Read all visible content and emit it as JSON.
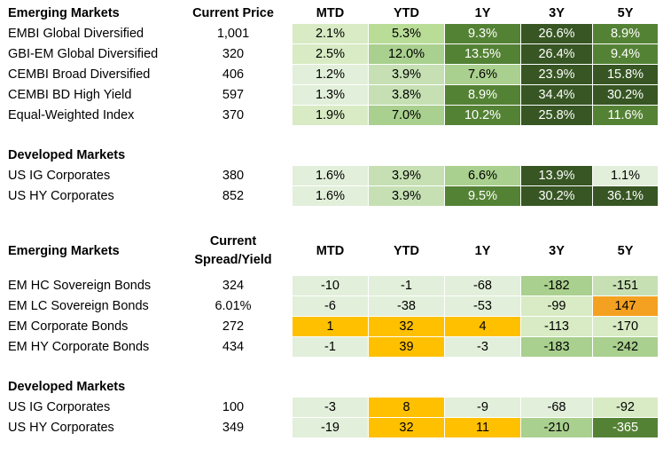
{
  "columns": [
    "MTD",
    "YTD",
    "1Y",
    "3Y",
    "5Y"
  ],
  "sections": [
    {
      "title": "Emerging Markets",
      "value_header": "Current Price",
      "show_col_headers": true,
      "rows": [
        {
          "name": "EMBI Global Diversified",
          "value": "1,001",
          "cells": [
            "2.1%",
            "5.3%",
            "9.3%",
            "26.6%",
            "8.9%"
          ],
          "colors": [
            "#d8ebc4",
            "#b9dc97",
            "#548235",
            "#375623",
            "#548235"
          ]
        },
        {
          "name": "GBI-EM Global Diversified",
          "value": "320",
          "cells": [
            "2.5%",
            "12.0%",
            "13.5%",
            "26.4%",
            "9.4%"
          ],
          "colors": [
            "#d8ebc4",
            "#a9d08e",
            "#548235",
            "#375623",
            "#548235"
          ]
        },
        {
          "name": "CEMBI Broad Diversified",
          "value": "406",
          "cells": [
            "1.2%",
            "3.9%",
            "7.6%",
            "23.9%",
            "15.8%"
          ],
          "colors": [
            "#e2efda",
            "#c6e0b4",
            "#a9d08e",
            "#375623",
            "#375623"
          ]
        },
        {
          "name": "CEMBI BD High Yield",
          "value": "597",
          "cells": [
            "1.3%",
            "3.8%",
            "8.9%",
            "34.4%",
            "30.2%"
          ],
          "colors": [
            "#e2efda",
            "#c6e0b4",
            "#548235",
            "#375623",
            "#375623"
          ]
        },
        {
          "name": "Equal-Weighted Index",
          "value": "370",
          "cells": [
            "1.9%",
            "7.0%",
            "10.2%",
            "25.8%",
            "11.6%"
          ],
          "colors": [
            "#d8ebc4",
            "#a9d08e",
            "#548235",
            "#375623",
            "#548235"
          ]
        }
      ]
    },
    {
      "title": "Developed Markets",
      "value_header": "",
      "show_col_headers": false,
      "rows": [
        {
          "name": "US IG Corporates",
          "value": "380",
          "cells": [
            "1.6%",
            "3.9%",
            "6.6%",
            "13.9%",
            "1.1%"
          ],
          "colors": [
            "#e2efda",
            "#c6e0b4",
            "#a9d08e",
            "#375623",
            "#e2efda"
          ]
        },
        {
          "name": "US HY Corporates",
          "value": "852",
          "cells": [
            "1.6%",
            "3.9%",
            "9.5%",
            "30.2%",
            "36.1%"
          ],
          "colors": [
            "#e2efda",
            "#c6e0b4",
            "#548235",
            "#375623",
            "#375623"
          ]
        }
      ]
    },
    {
      "title": "Emerging Markets",
      "value_header_line1": "Current",
      "value_header_line2": "Spread/Yield",
      "show_col_headers": true,
      "rows": [
        {
          "name": "EM HC Sovereign Bonds",
          "value": "324",
          "cells": [
            "-10",
            "-1",
            "-68",
            "-182",
            "-151"
          ],
          "colors": [
            "#e2efda",
            "#e2efda",
            "#e2efda",
            "#a9d08e",
            "#c6e0b4"
          ]
        },
        {
          "name": "EM LC Sovereign Bonds",
          "value": "6.01%",
          "cells": [
            "-6",
            "-38",
            "-53",
            "-99",
            "147"
          ],
          "colors": [
            "#e2efda",
            "#e2efda",
            "#e2efda",
            "#d8ebc4",
            "#f4a020"
          ]
        },
        {
          "name": "EM Corporate Bonds",
          "value": "272",
          "cells": [
            "1",
            "32",
            "4",
            "-113",
            "-170"
          ],
          "colors": [
            "#ffc000",
            "#ffc000",
            "#ffc000",
            "#d8ebc4",
            "#d8ebc4"
          ]
        },
        {
          "name": "EM HY Corporate Bonds",
          "value": "434",
          "cells": [
            "-1",
            "39",
            "-3",
            "-183",
            "-242"
          ],
          "colors": [
            "#e2efda",
            "#ffc000",
            "#e2efda",
            "#a9d08e",
            "#a9d08e"
          ]
        }
      ]
    },
    {
      "title": "Developed Markets",
      "show_col_headers": false,
      "rows": [
        {
          "name": "US IG Corporates",
          "value": "100",
          "cells": [
            "-3",
            "8",
            "-9",
            "-68",
            "-92"
          ],
          "colors": [
            "#e2efda",
            "#ffc000",
            "#e2efda",
            "#e2efda",
            "#d8ebc4"
          ]
        },
        {
          "name": "US HY Corporates",
          "value": "349",
          "cells": [
            "-19",
            "32",
            "11",
            "-210",
            "-365"
          ],
          "colors": [
            "#e2efda",
            "#ffc000",
            "#ffc000",
            "#a9d08e",
            "#548235"
          ]
        }
      ]
    }
  ],
  "dark_text_threshold_colors": [
    "#548235",
    "#375623"
  ]
}
